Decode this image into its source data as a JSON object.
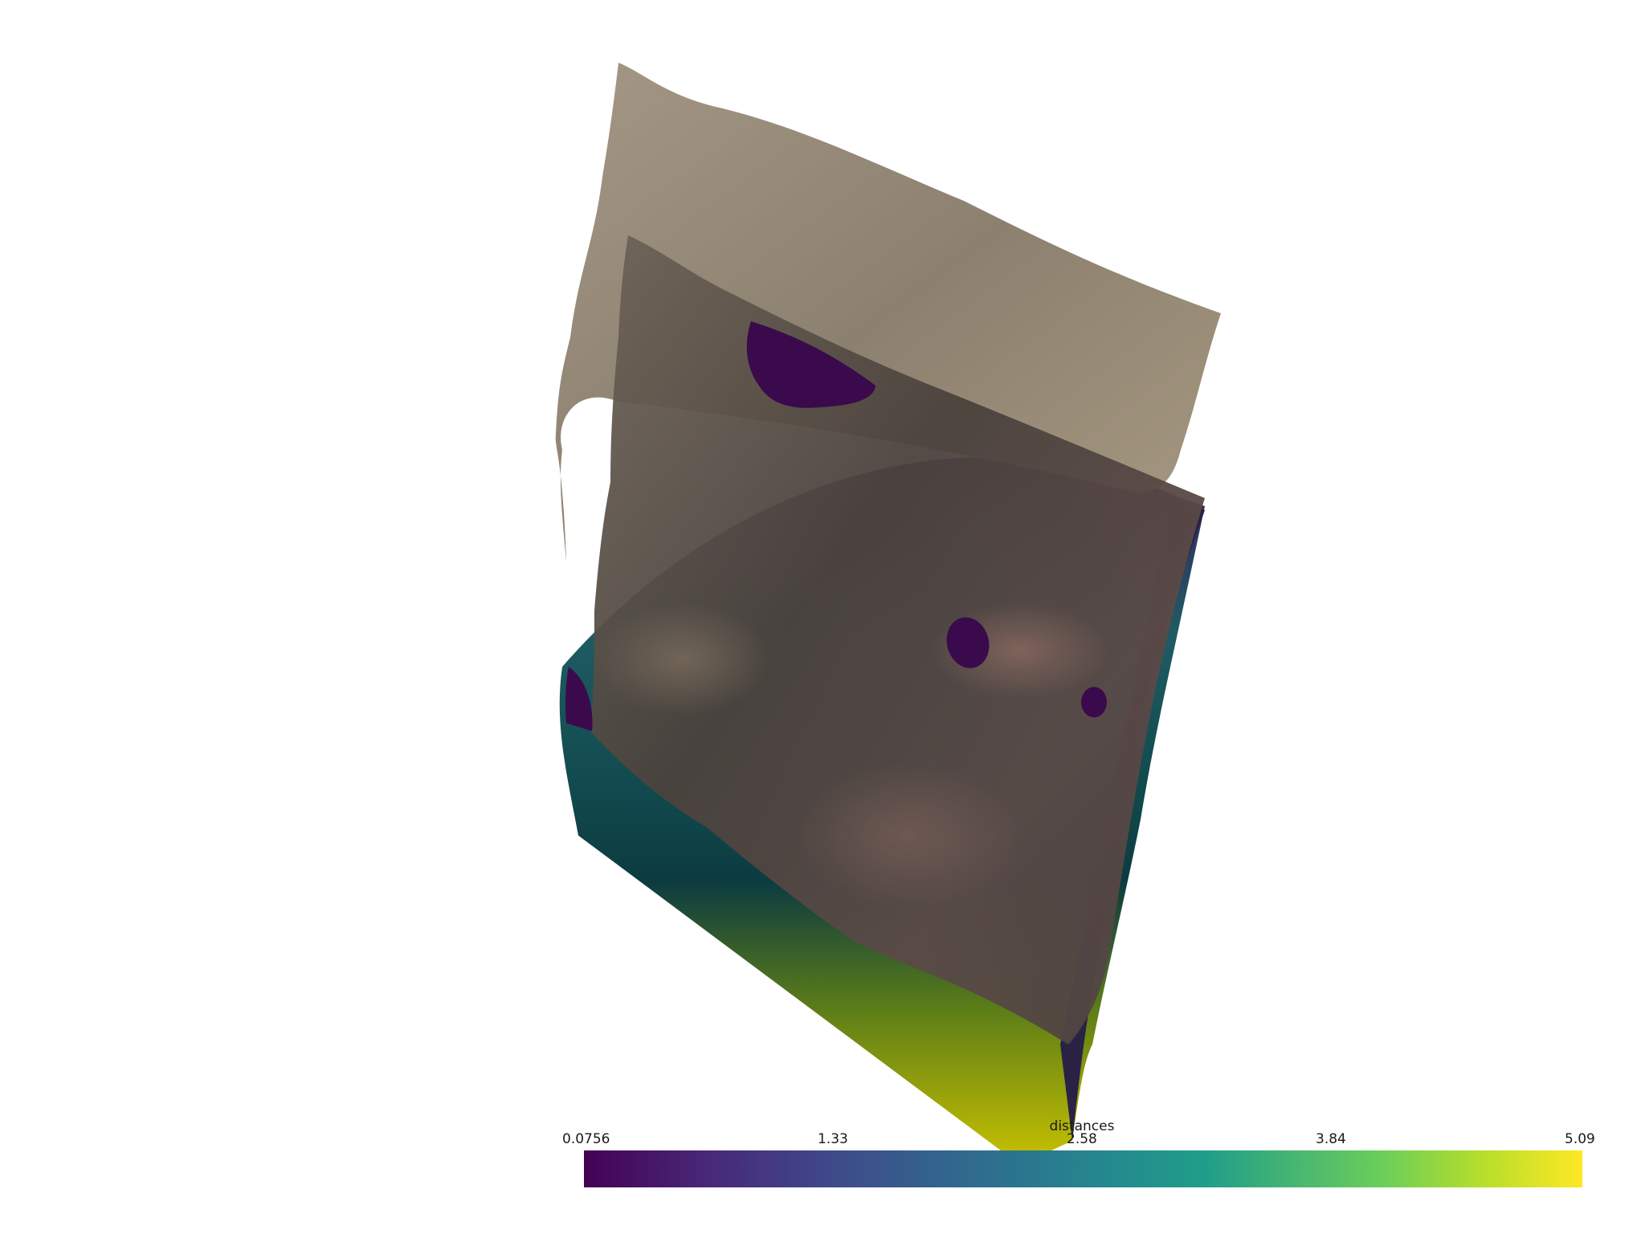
{
  "scene": {
    "description_name": "3d surface distance visualization",
    "background": "#ffffff"
  },
  "scalar_bar": {
    "title": "distances",
    "colormap": "viridis",
    "range": [
      0.0756,
      5.09
    ],
    "ticks": [
      "0.0756",
      "1.33",
      "2.58",
      "3.84",
      "5.09"
    ]
  }
}
